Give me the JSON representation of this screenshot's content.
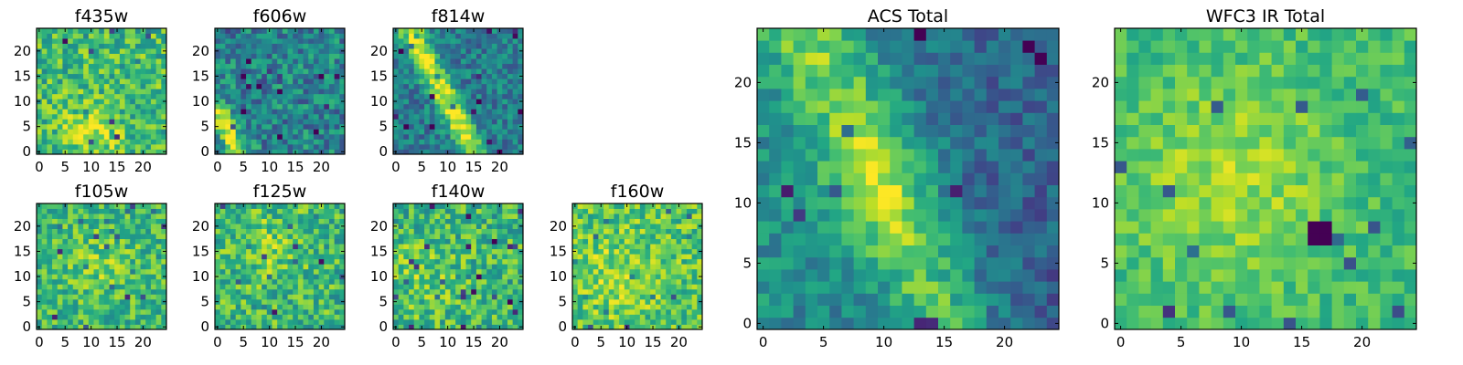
{
  "figure": {
    "description_free": true
  },
  "chart_data": [
    {
      "type": "heatmap",
      "title": "f435w",
      "xlim": [
        -0.5,
        24.5
      ],
      "ylim": [
        -0.5,
        24.5
      ],
      "xticks": [
        0,
        5,
        10,
        15,
        20
      ],
      "yticks": [
        0,
        5,
        10,
        15,
        20
      ],
      "colormap": "viridis",
      "grid_size": 25,
      "pattern": "noisy with a brighter clump near x 8-12, y 2-7",
      "seed": 11,
      "base": 0.68,
      "noise": 0.22,
      "features": [
        {
          "kind": "blob",
          "cx": 10,
          "cy": 4,
          "r": 3.5,
          "amp": 0.25
        }
      ]
    },
    {
      "type": "heatmap",
      "title": "f606w",
      "xlim": [
        -0.5,
        24.5
      ],
      "ylim": [
        -0.5,
        24.5
      ],
      "xticks": [
        0,
        5,
        10,
        15,
        20
      ],
      "yticks": [
        0,
        5,
        10,
        15,
        20
      ],
      "colormap": "viridis",
      "grid_size": 25,
      "pattern": "noisy background with a bright streak in the lower-left corner",
      "seed": 23,
      "base": 0.45,
      "noise": 0.22,
      "features": [
        {
          "kind": "line",
          "x0": 0,
          "y0": 8,
          "x1": 4,
          "y1": 0,
          "w": 1.4,
          "amp": 0.55
        }
      ]
    },
    {
      "type": "heatmap",
      "title": "f814w",
      "xlim": [
        -0.5,
        24.5
      ],
      "ylim": [
        -0.5,
        24.5
      ],
      "xticks": [
        0,
        5,
        10,
        15,
        20
      ],
      "yticks": [
        0,
        5,
        10,
        15,
        20
      ],
      "colormap": "viridis",
      "grid_size": 25,
      "pattern": "bright diagonal streak from upper-left to lower-middle",
      "seed": 37,
      "base": 0.42,
      "noise": 0.18,
      "features": [
        {
          "kind": "line",
          "x0": 3,
          "y0": 24,
          "x1": 15,
          "y1": 0,
          "w": 1.6,
          "amp": 0.55
        }
      ]
    },
    {
      "type": "heatmap",
      "title": "f105w",
      "xlim": [
        -0.5,
        24.5
      ],
      "ylim": [
        -0.5,
        24.5
      ],
      "xticks": [
        0,
        5,
        10,
        15,
        20
      ],
      "yticks": [
        0,
        5,
        10,
        15,
        20
      ],
      "colormap": "viridis",
      "grid_size": 25,
      "pattern": "mottled mid-to-bright field",
      "seed": 41,
      "base": 0.66,
      "noise": 0.2,
      "features": [
        {
          "kind": "blob",
          "cx": 12,
          "cy": 12,
          "r": 5,
          "amp": 0.12
        }
      ]
    },
    {
      "type": "heatmap",
      "title": "f125w",
      "xlim": [
        -0.5,
        24.5
      ],
      "ylim": [
        -0.5,
        24.5
      ],
      "xticks": [
        0,
        5,
        10,
        15,
        20
      ],
      "yticks": [
        0,
        5,
        10,
        15,
        20
      ],
      "colormap": "viridis",
      "grid_size": 25,
      "pattern": "mottled mid-to-bright field",
      "seed": 53,
      "base": 0.66,
      "noise": 0.22,
      "features": [
        {
          "kind": "blob",
          "cx": 10,
          "cy": 16,
          "r": 5,
          "amp": 0.12
        }
      ]
    },
    {
      "type": "heatmap",
      "title": "f140w",
      "xlim": [
        -0.5,
        24.5
      ],
      "ylim": [
        -0.5,
        24.5
      ],
      "xticks": [
        0,
        5,
        10,
        15,
        20
      ],
      "yticks": [
        0,
        5,
        10,
        15,
        20
      ],
      "colormap": "viridis",
      "grid_size": 25,
      "pattern": "mottled mid-to-bright field",
      "seed": 67,
      "base": 0.66,
      "noise": 0.22,
      "features": [
        {
          "kind": "blob",
          "cx": 5,
          "cy": 10,
          "r": 5,
          "amp": 0.12
        }
      ]
    },
    {
      "type": "heatmap",
      "title": "f160w",
      "xlim": [
        -0.5,
        24.5
      ],
      "ylim": [
        -0.5,
        24.5
      ],
      "xticks": [
        0,
        5,
        10,
        15,
        20
      ],
      "yticks": [
        0,
        5,
        10,
        15,
        20
      ],
      "colormap": "viridis",
      "grid_size": 25,
      "pattern": "bright mottled field",
      "seed": 79,
      "base": 0.72,
      "noise": 0.2,
      "features": [
        {
          "kind": "blob",
          "cx": 8,
          "cy": 10,
          "r": 6,
          "amp": 0.12
        }
      ]
    },
    {
      "type": "heatmap",
      "title": "ACS Total",
      "xlim": [
        -0.5,
        24.5
      ],
      "ylim": [
        -0.5,
        24.5
      ],
      "xticks": [
        0,
        5,
        10,
        15,
        20
      ],
      "yticks": [
        0,
        5,
        10,
        15,
        20
      ],
      "colormap": "viridis",
      "grid_size": 25,
      "pattern": "bright diagonal ridge from upper-left to lower-middle, darker to the right",
      "seed": 97,
      "base": 0.5,
      "noise": 0.14,
      "features": [
        {
          "kind": "line",
          "x0": 4,
          "y0": 24,
          "x1": 15,
          "y1": 0,
          "w": 2.6,
          "amp": 0.35
        },
        {
          "kind": "blob",
          "cx": 9,
          "cy": 11,
          "r": 3,
          "amp": 0.2
        },
        {
          "kind": "grad",
          "amp": -0.2
        }
      ]
    },
    {
      "type": "heatmap",
      "title": "WFC3 IR Total",
      "xlim": [
        -0.5,
        24.5
      ],
      "ylim": [
        -0.5,
        24.5
      ],
      "xticks": [
        0,
        5,
        10,
        15,
        20
      ],
      "yticks": [
        0,
        5,
        10,
        15,
        20
      ],
      "colormap": "viridis",
      "grid_size": 25,
      "pattern": "mostly bright field with a dark pixel cluster near x 16-17, y 7-8",
      "seed": 131,
      "base": 0.68,
      "noise": 0.12,
      "features": [
        {
          "kind": "blob",
          "cx": 9,
          "cy": 12,
          "r": 6,
          "amp": 0.18
        },
        {
          "kind": "dark",
          "x": 16,
          "y": 7,
          "w": 2,
          "h": 2
        }
      ]
    }
  ]
}
